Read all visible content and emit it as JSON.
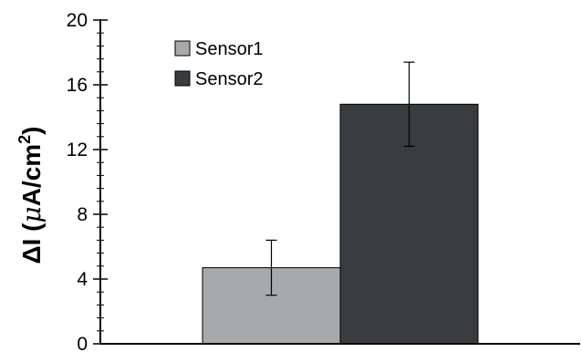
{
  "chart_data": {
    "type": "bar",
    "categories": [
      ""
    ],
    "series": [
      {
        "name": "Sensor1",
        "values": [
          4.7
        ],
        "error": [
          1.7
        ],
        "color": "#a7a9ab"
      },
      {
        "name": "Sensor2",
        "values": [
          14.8
        ],
        "error": [
          2.6
        ],
        "color": "#393c3f"
      }
    ],
    "title": "",
    "xlabel": "",
    "ylabel": {
      "prefix": "ΔI (",
      "mu": "μ",
      "unit": "A/cm",
      "superscript": "2",
      "suffix": ")"
    },
    "ylim": [
      0,
      20
    ],
    "yticks": [
      0,
      4,
      8,
      12,
      16,
      20
    ],
    "minor_ticks_per_major": 4,
    "grid": false,
    "legend_position": "top-left"
  }
}
